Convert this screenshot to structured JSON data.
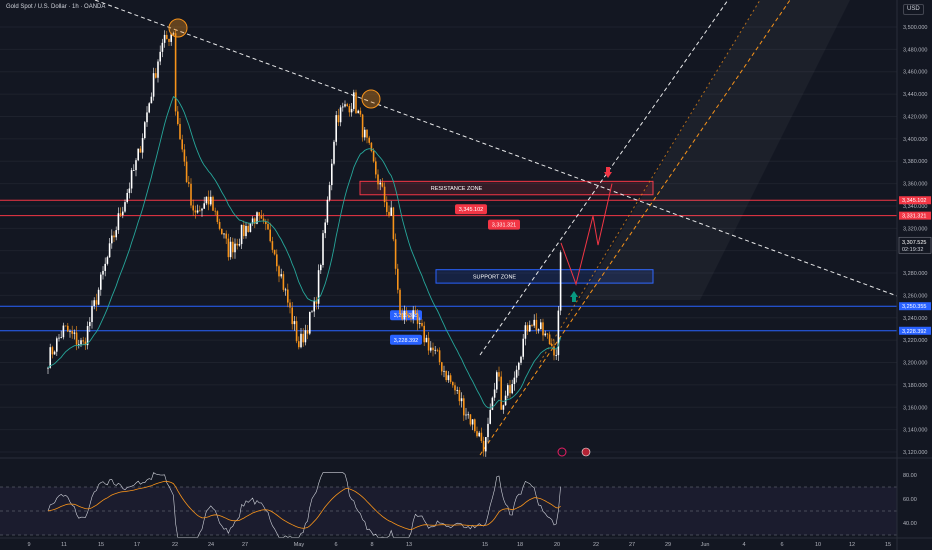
{
  "header": {
    "title": "Gold Spot / U.S. Dollar · 1h · OANDA",
    "currency": "USD"
  },
  "chart_data": {
    "type": "candlestick",
    "title": "Gold Spot / U.S. Dollar · 1h · OANDA",
    "currency": "USD",
    "y_axis_ticks": [
      "3,500.000",
      "3,480.000",
      "3,460.000",
      "3,440.000",
      "3,420.000",
      "3,400.000",
      "3,380.000",
      "3,360.000",
      "3,340.000",
      "3,320.000",
      "3,300.000",
      "3,280.000",
      "3,260.000",
      "3,240.000",
      "3,220.000",
      "3,200.000",
      "3,180.000",
      "3,160.000",
      "3,140.000",
      "3,120.000"
    ],
    "y_tick_values": [
      3500,
      3480,
      3460,
      3440,
      3420,
      3400,
      3380,
      3360,
      3340,
      3320,
      3300,
      3280,
      3260,
      3240,
      3220,
      3200,
      3180,
      3160,
      3140,
      3120
    ],
    "ylim": [
      3113,
      3526
    ],
    "x_axis_ticks": [
      "9",
      "11",
      "15",
      "17",
      "22",
      "24",
      "27",
      "May",
      "6",
      "8",
      "13",
      "15",
      "18",
      "20",
      "22",
      "27",
      "29",
      "Jun",
      "4",
      "6",
      "10",
      "12",
      "15"
    ],
    "price_path": [
      {
        "x": "Apr 8",
        "y": 3080
      },
      {
        "x": "Apr 10",
        "y": 3200
      },
      {
        "x": "Apr 11",
        "y": 3230
      },
      {
        "x": "Apr 14",
        "y": 3215
      },
      {
        "x": "Apr 16",
        "y": 3330
      },
      {
        "x": "Apr 17",
        "y": 3380
      },
      {
        "x": "Apr 21",
        "y": 3480
      },
      {
        "x": "Apr 22",
        "y": 3500
      },
      {
        "x": "Apr 22",
        "y": 3430
      },
      {
        "x": "Apr 23",
        "y": 3330
      },
      {
        "x": "Apr 24",
        "y": 3345
      },
      {
        "x": "Apr 25",
        "y": 3300
      },
      {
        "x": "Apr 28",
        "y": 3330
      },
      {
        "x": "Apr 29",
        "y": 3310
      },
      {
        "x": "Apr 30",
        "y": 3260
      },
      {
        "x": "May 1",
        "y": 3215
      },
      {
        "x": "May 2",
        "y": 3250
      },
      {
        "x": "May 5",
        "y": 3330
      },
      {
        "x": "May 6",
        "y": 3420
      },
      {
        "x": "May 7",
        "y": 3435
      },
      {
        "x": "May 8",
        "y": 3380
      },
      {
        "x": "May 9",
        "y": 3330
      },
      {
        "x": "May 9",
        "y": 3345
      },
      {
        "x": "May 12",
        "y": 3240
      },
      {
        "x": "May 13",
        "y": 3245
      },
      {
        "x": "May 14",
        "y": 3200
      },
      {
        "x": "May 15",
        "y": 3125
      },
      {
        "x": "May 16",
        "y": 3200
      },
      {
        "x": "May 16",
        "y": 3150
      },
      {
        "x": "May 19",
        "y": 3240
      },
      {
        "x": "May 20",
        "y": 3210
      },
      {
        "x": "May 21",
        "y": 3300
      },
      {
        "x": "May 21",
        "y": 3307.525
      }
    ],
    "current_price": {
      "value": 3307.525,
      "label": "3,307.525",
      "countdown": "02:19:32"
    },
    "horizontal_lines": [
      {
        "value": 3345.102,
        "label": "3,345.102",
        "color": "#f23645"
      },
      {
        "value": 3331.321,
        "label": "3,331.321",
        "color": "#f23645"
      },
      {
        "value": 3250.355,
        "label": "3,250.355",
        "color": "#2962ff"
      },
      {
        "value": 3228.392,
        "label": "3,228.392",
        "color": "#2962ff"
      }
    ],
    "zones": [
      {
        "label": "RESISTANCE ZONE",
        "from": 3350,
        "to": 3362,
        "color": "#f23645"
      },
      {
        "label": "SUPPORT ZONE",
        "from": 3271,
        "to": 3283,
        "color": "#2962ff"
      }
    ],
    "annotations": [
      "RESISTANCE ZONE",
      "SUPPORT ZONE"
    ],
    "projection": [
      3307,
      3270,
      3331,
      3305,
      3360
    ],
    "rsi": {
      "ticks": [
        "80.00",
        "60.00",
        "40.00"
      ],
      "tick_values": [
        80,
        60,
        40
      ],
      "overbought": 70,
      "oversold": 30,
      "current": 70
    },
    "colors": {
      "up": "#ffffff",
      "down": "#f7931a",
      "ma": "#26a69a",
      "resistance": "#f23645",
      "support": "#2962ff"
    }
  }
}
